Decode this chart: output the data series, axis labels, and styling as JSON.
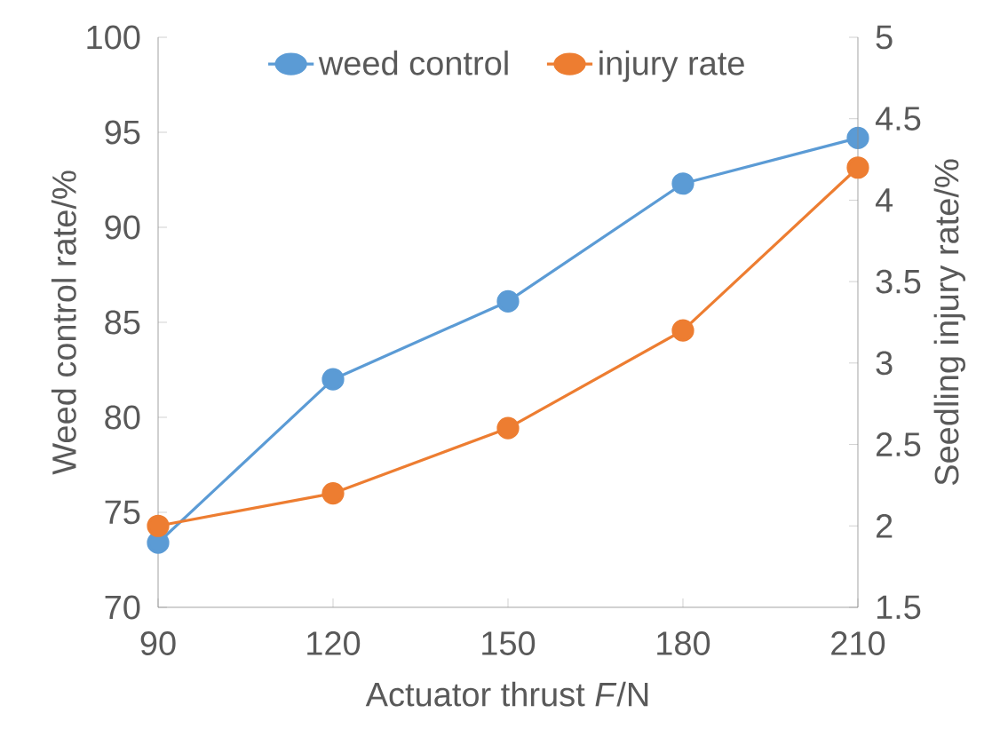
{
  "chart_data": {
    "type": "line",
    "xlabel": "Actuator thrust *F*/N",
    "ylabel": "Weed control rate/%",
    "y2label": "Seedling injury rate/%",
    "x": [
      90,
      120,
      150,
      180,
      210
    ],
    "xlim": [
      90,
      210
    ],
    "xticks": [
      90,
      120,
      150,
      180,
      210
    ],
    "ylim": [
      70,
      100
    ],
    "yticks": [
      70,
      75,
      80,
      85,
      90,
      95,
      100
    ],
    "y2lim": [
      1.5,
      5
    ],
    "y2ticks": [
      1.5,
      2,
      2.5,
      3,
      3.5,
      4,
      4.5,
      5
    ],
    "series": [
      {
        "name": "weed control",
        "color": "#5b9bd5",
        "values": [
          73.4,
          82.0,
          86.1,
          92.3,
          94.7
        ]
      },
      {
        "name": "injury rate",
        "color": "#ed7d31",
        "values": [
          2.0,
          2.2,
          2.6,
          3.2,
          4.2
        ],
        "axis": "y2"
      }
    ],
    "legend": "top",
    "marker": "circle"
  }
}
